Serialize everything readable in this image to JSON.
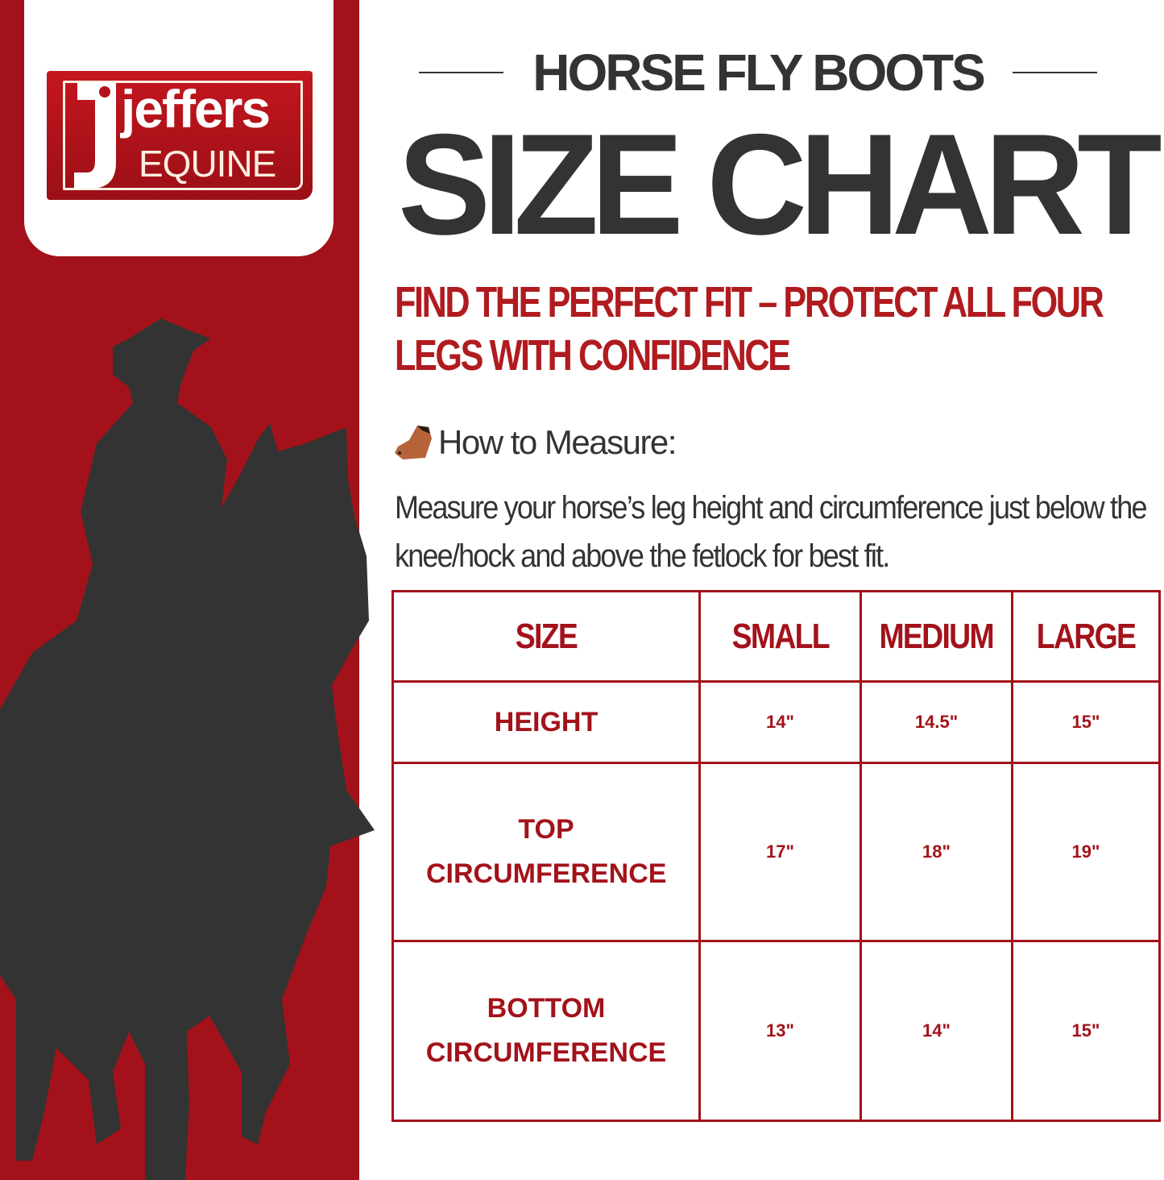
{
  "brand": {
    "logo_main": "jeffers",
    "logo_sub": "EQUINE"
  },
  "header": {
    "kicker": "HORSE FLY BOOTS",
    "title": "SIZE CHART"
  },
  "tagline": "FIND THE PERFECT FIT – PROTECT ALL FOUR LEGS WITH CONFIDENCE",
  "howto": {
    "icon": "horse-face-icon",
    "label": "How to Measure:",
    "text": "Measure your horse’s leg height and circumference just below the knee/hock and above the fetlock for best fit."
  },
  "colors": {
    "brand_red": "#a3121a",
    "dark": "#333333"
  },
  "table": {
    "headers": [
      "SIZE",
      "SMALL",
      "MEDIUM",
      "LARGE"
    ],
    "rows": [
      {
        "label": "HEIGHT",
        "values": [
          "14\"",
          "14.5\"",
          "15\""
        ]
      },
      {
        "label": "TOP CIRCUMFERENCE",
        "values": [
          "17\"",
          "18\"",
          "19\""
        ]
      },
      {
        "label": "BOTTOM CIRCUMFERENCE",
        "values": [
          "13\"",
          "14\"",
          "15\""
        ]
      }
    ]
  }
}
